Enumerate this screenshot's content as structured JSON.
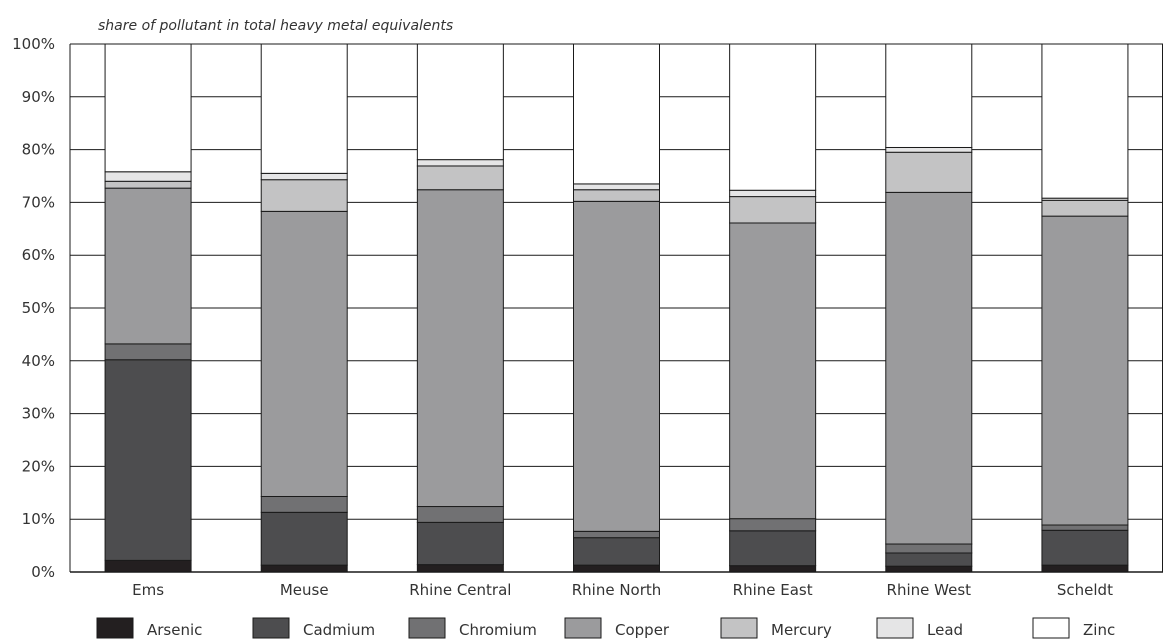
{
  "chart_data": {
    "type": "bar",
    "stacked": true,
    "ylabel": "share of pollutant in total heavy metal equivalents",
    "ylim": [
      0,
      100
    ],
    "y_ticks": [
      "0%",
      "10%",
      "20%",
      "30%",
      "40%",
      "50%",
      "60%",
      "70%",
      "80%",
      "90%",
      "100%"
    ],
    "grid": true,
    "legend_position": "bottom",
    "categories": [
      "Ems",
      "Meuse",
      "Rhine Central",
      "Rhine North",
      "Rhine East",
      "Rhine West",
      "Scheldt"
    ],
    "series": [
      {
        "name": "Arsenic",
        "color": "#231f20",
        "values": [
          2.2,
          1.3,
          1.4,
          1.3,
          1.2,
          1.1,
          1.3
        ]
      },
      {
        "name": "Cadmium",
        "color": "#4d4d4f",
        "values": [
          38.0,
          10.0,
          8.0,
          5.2,
          6.6,
          2.5,
          6.6
        ]
      },
      {
        "name": "Chromium",
        "color": "#717173",
        "values": [
          3.0,
          3.0,
          3.0,
          1.2,
          2.3,
          1.7,
          1.0
        ]
      },
      {
        "name": "Copper",
        "color": "#9b9b9d",
        "values": [
          29.5,
          54.0,
          60.0,
          62.5,
          56.0,
          66.6,
          58.5
        ]
      },
      {
        "name": "Mercury",
        "color": "#c3c3c4",
        "values": [
          1.3,
          6.0,
          4.5,
          2.2,
          5.0,
          7.6,
          3.0
        ]
      },
      {
        "name": "Lead",
        "color": "#e5e5e6",
        "values": [
          1.8,
          1.2,
          1.2,
          1.1,
          1.2,
          0.9,
          0.4
        ]
      },
      {
        "name": "Zinc",
        "color": "#ffffff",
        "values": [
          24.2,
          24.5,
          21.9,
          26.5,
          27.7,
          19.6,
          29.2
        ]
      }
    ]
  }
}
